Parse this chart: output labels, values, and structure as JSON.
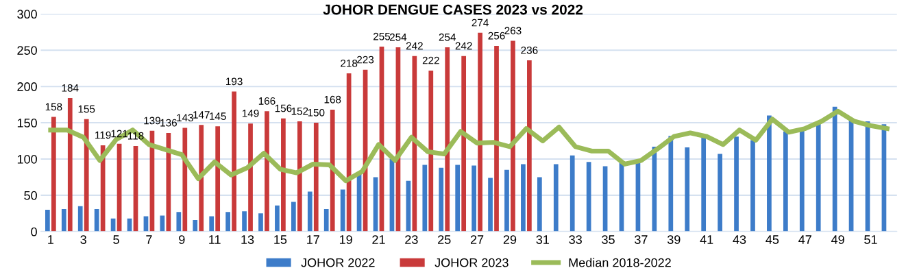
{
  "chart_data": {
    "type": "bar",
    "title": "JOHOR DENGUE CASES 2023 vs 2022",
    "categories": [
      "1",
      null,
      "3",
      null,
      "5",
      null,
      "7",
      null,
      "9",
      null,
      "11",
      null,
      "13",
      null,
      "15",
      null,
      "17",
      null,
      "19",
      null,
      "21",
      null,
      "23",
      null,
      "25",
      null,
      "27",
      null,
      "29",
      null,
      "31",
      null,
      "33",
      null,
      "35",
      null,
      "37",
      null,
      "39",
      null,
      "41",
      null,
      "43",
      null,
      "45",
      null,
      "47",
      null,
      "49",
      null,
      "51",
      null
    ],
    "series": [
      {
        "name": "JOHOR 2022",
        "color": "#3d7cc9",
        "values": [
          30,
          31,
          35,
          31,
          18,
          18,
          21,
          22,
          27,
          16,
          21,
          27,
          28,
          25,
          36,
          41,
          55,
          31,
          58,
          80,
          75,
          100,
          70,
          92,
          88,
          92,
          91,
          74,
          85,
          93,
          75,
          93,
          105,
          96,
          90,
          95,
          96,
          117,
          132,
          116,
          131,
          107,
          131,
          126,
          160,
          138,
          140,
          150,
          172,
          155,
          152,
          148
        ]
      },
      {
        "name": "JOHOR 2023",
        "color": "#c93a3a",
        "values": [
          158,
          184,
          155,
          119,
          121,
          118,
          139,
          136,
          143,
          147,
          145,
          193,
          149,
          166,
          156,
          152,
          150,
          168,
          218,
          223,
          255,
          254,
          242,
          222,
          254,
          242,
          274,
          256,
          263,
          236,
          null,
          null,
          null,
          null,
          null,
          null,
          null,
          null,
          null,
          null,
          null,
          null,
          null,
          null,
          null,
          null,
          null,
          null,
          null,
          null,
          null,
          null
        ],
        "value_labels": [
          "158",
          "184",
          "155",
          "119",
          "121",
          "118",
          "139",
          "136",
          "143",
          "147",
          "145",
          "193",
          "149",
          "166",
          "156",
          "152",
          "150",
          "168",
          "218",
          "223",
          "255",
          "254",
          "242",
          "222",
          "254",
          "242",
          "274",
          "256",
          "263",
          "236",
          null,
          null,
          null,
          null,
          null,
          null,
          null,
          null,
          null,
          null,
          null,
          null,
          null,
          null,
          null,
          null,
          null,
          null,
          null,
          null,
          null,
          null
        ]
      },
      {
        "name": "Median 2018-2022",
        "type": "line",
        "color": "#9bbb59",
        "values": [
          140,
          140,
          130,
          98,
          127,
          140,
          120,
          113,
          106,
          73,
          96,
          78,
          88,
          108,
          86,
          81,
          93,
          92,
          70,
          83,
          120,
          98,
          130,
          110,
          107,
          138,
          122,
          123,
          117,
          142,
          125,
          144,
          117,
          111,
          111,
          93,
          98,
          114,
          131,
          136,
          131,
          120,
          140,
          126,
          155,
          137,
          142,
          152,
          166,
          152,
          146,
          142
        ]
      }
    ],
    "ylim": [
      0,
      300
    ],
    "yticks": [
      0,
      50,
      100,
      150,
      200,
      250,
      300
    ],
    "grid": "y",
    "legend": "bottom"
  }
}
